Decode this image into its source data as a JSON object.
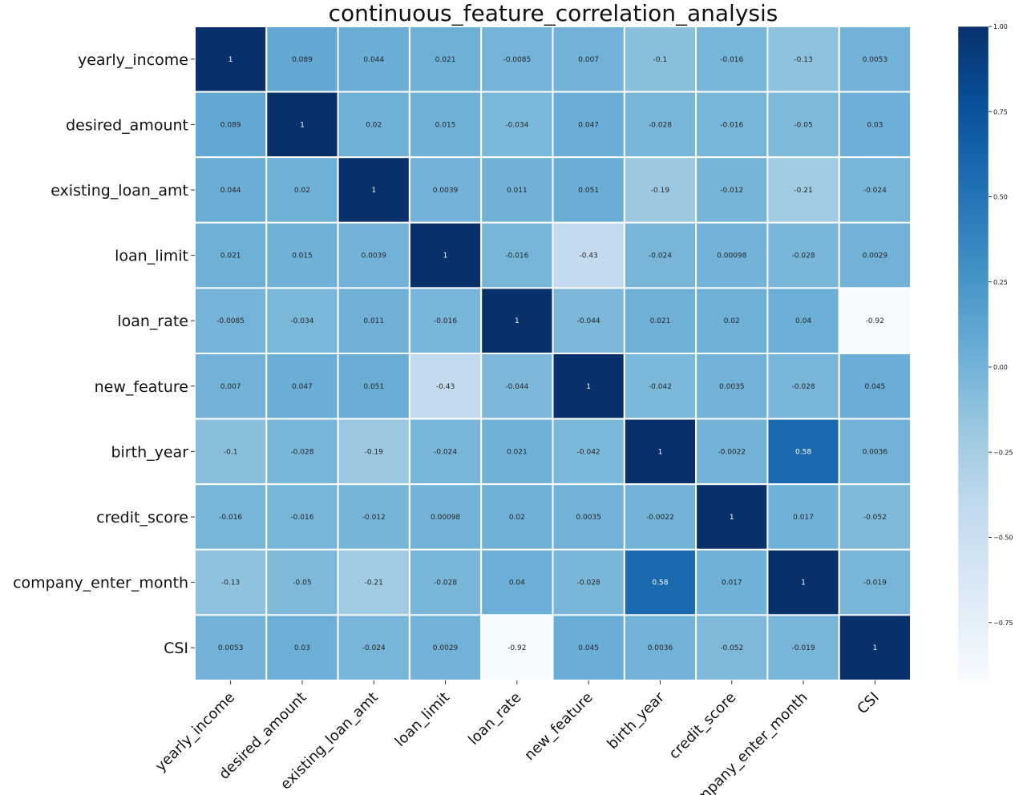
{
  "chart_data": {
    "type": "heatmap",
    "title": "continuous_feature_correlation_analysis",
    "xlabel": "",
    "ylabel": "",
    "labels": [
      "yearly_income",
      "desired_amount",
      "existing_loan_amt",
      "loan_limit",
      "loan_rate",
      "new_feature",
      "birth_year",
      "credit_score",
      "company_enter_month",
      "CSI"
    ],
    "values": [
      [
        1,
        0.089,
        0.044,
        0.021,
        -0.0085,
        0.007,
        -0.1,
        -0.016,
        -0.13,
        0.0053
      ],
      [
        0.089,
        1,
        0.02,
        0.015,
        -0.034,
        0.047,
        -0.028,
        -0.016,
        -0.05,
        0.03
      ],
      [
        0.044,
        0.02,
        1,
        0.0039,
        0.011,
        0.051,
        -0.19,
        -0.012,
        -0.21,
        -0.024
      ],
      [
        0.021,
        0.015,
        0.0039,
        1,
        -0.016,
        -0.43,
        -0.024,
        0.00098,
        -0.028,
        0.0029
      ],
      [
        -0.0085,
        -0.034,
        0.011,
        -0.016,
        1,
        -0.044,
        0.021,
        0.02,
        0.04,
        -0.92
      ],
      [
        0.007,
        0.047,
        0.051,
        -0.43,
        -0.044,
        1,
        -0.042,
        0.0035,
        -0.028,
        0.045
      ],
      [
        -0.1,
        -0.028,
        -0.19,
        -0.024,
        0.021,
        -0.042,
        1,
        -0.0022,
        0.58,
        0.0036
      ],
      [
        -0.016,
        -0.016,
        -0.012,
        0.00098,
        0.02,
        0.0035,
        -0.0022,
        1,
        0.017,
        -0.052
      ],
      [
        -0.13,
        -0.05,
        -0.21,
        -0.028,
        0.04,
        -0.028,
        0.58,
        0.017,
        1,
        -0.019
      ],
      [
        0.0053,
        0.03,
        -0.024,
        0.0029,
        -0.92,
        0.045,
        0.0036,
        -0.052,
        -0.019,
        1
      ]
    ],
    "cell_labels": [
      [
        "1",
        "0.089",
        "0.044",
        "0.021",
        "-0.0085",
        "0.007",
        "-0.1",
        "-0.016",
        "-0.13",
        "0.0053"
      ],
      [
        "0.089",
        "1",
        "0.02",
        "0.015",
        "-0.034",
        "0.047",
        "-0.028",
        "-0.016",
        "-0.05",
        "0.03"
      ],
      [
        "0.044",
        "0.02",
        "1",
        "0.0039",
        "0.011",
        "0.051",
        "-0.19",
        "-0.012",
        "-0.21",
        "-0.024"
      ],
      [
        "0.021",
        "0.015",
        "0.0039",
        "1",
        "-0.016",
        "-0.43",
        "-0.024",
        "0.00098",
        "-0.028",
        "0.0029"
      ],
      [
        "-0.0085",
        "-0.034",
        "0.011",
        "-0.016",
        "1",
        "-0.044",
        "0.021",
        "0.02",
        "0.04",
        "-0.92"
      ],
      [
        "0.007",
        "0.047",
        "0.051",
        "-0.43",
        "-0.044",
        "1",
        "-0.042",
        "0.0035",
        "-0.028",
        "0.045"
      ],
      [
        "-0.1",
        "-0.028",
        "-0.19",
        "-0.024",
        "0.021",
        "-0.042",
        "1",
        "-0.0022",
        "0.58",
        "0.0036"
      ],
      [
        "-0.016",
        "-0.016",
        "-0.012",
        "0.00098",
        "0.02",
        "0.0035",
        "-0.0022",
        "1",
        "0.017",
        "-0.052"
      ],
      [
        "-0.13",
        "-0.05",
        "-0.21",
        "-0.028",
        "0.04",
        "-0.028",
        "0.58",
        "0.017",
        "1",
        "-0.019"
      ],
      [
        "0.0053",
        "0.03",
        "-0.024",
        "0.0029",
        "-0.92",
        "0.045",
        "0.0036",
        "-0.052",
        "-0.019",
        "1"
      ]
    ],
    "colormap": "Blues",
    "vmin": -0.92,
    "vmax": 1.0,
    "colorbar": {
      "ticks": [
        1.0,
        0.75,
        0.5,
        0.25,
        0.0,
        -0.25,
        -0.5,
        -0.75
      ],
      "tick_labels": [
        "1.00",
        "0.75",
        "0.50",
        "0.25",
        "0.00",
        "−0.25",
        "−0.50",
        "−0.75"
      ]
    },
    "grid_lines_color": "#ffffff"
  }
}
